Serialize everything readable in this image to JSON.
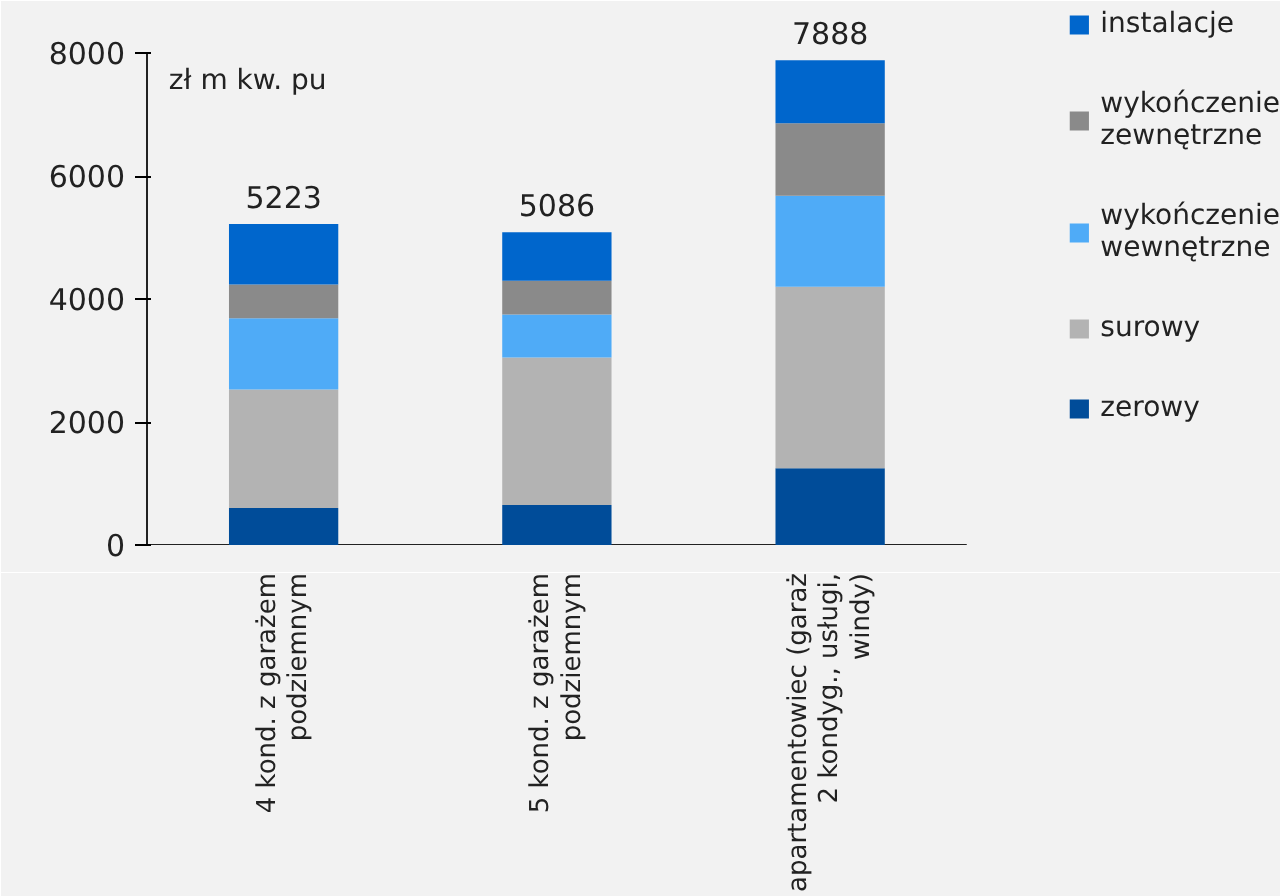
{
  "chart_data": {
    "type": "bar",
    "stacked": true,
    "ylabel": "zł  m kw. pu",
    "categories": [
      "4 kond. z garażem podziemnym",
      "5 kond. z garażem podziemnym",
      "apartamentowiec (garaż 2 kondyg., usługi, windy)"
    ],
    "series": [
      {
        "name": "zerowy",
        "color": "#004c99",
        "values": [
          600,
          650,
          1250
        ]
      },
      {
        "name": "surowy",
        "color": "#b3b3b3",
        "values": [
          1930,
          2400,
          2950
        ]
      },
      {
        "name": "wykończenie wewnętrzne",
        "color": "#4fabf7",
        "values": [
          1160,
          700,
          1480
        ]
      },
      {
        "name": "wykończenie zewnętrzne",
        "color": "#8a8a8a",
        "values": [
          550,
          550,
          1180
        ]
      },
      {
        "name": "instalacje",
        "color": "#0066cc",
        "values": [
          983,
          786,
          1028
        ]
      }
    ],
    "totals": [
      "5223",
      "5086",
      "7888"
    ],
    "ylim": [
      0,
      8000
    ],
    "yticks": [
      0,
      2000,
      4000,
      6000,
      8000
    ],
    "grid": false,
    "legend": "right"
  }
}
